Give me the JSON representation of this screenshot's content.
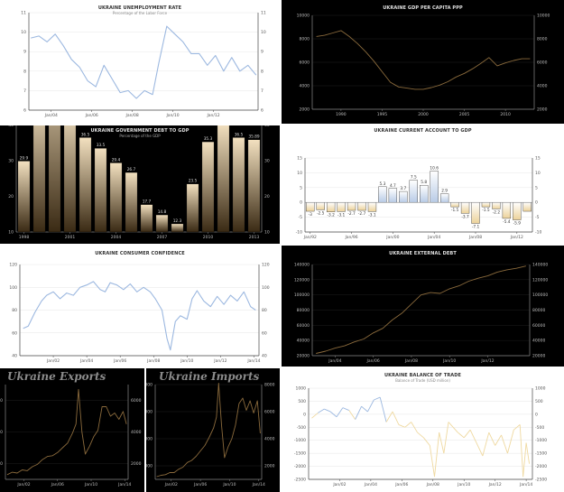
{
  "charts": [
    {
      "id": "unemployment",
      "type": "line",
      "theme": "light",
      "title": "UKRAINE UNEMPLOYMENT RATE",
      "subtitle": "Percentage of the Labor Force",
      "line_color": "#9cb8e0",
      "ylim": [
        6,
        11
      ],
      "yticks": [
        "11",
        "10",
        "9",
        "8",
        "7",
        "6"
      ],
      "yticks_right": [
        "11",
        "10",
        "9",
        "8",
        "7",
        "6"
      ],
      "xticks": [
        "Jan/04",
        "Jan/06",
        "Jan/08",
        "Jan/10",
        "Jan/12"
      ],
      "x": [
        2003.0,
        2003.4,
        2003.8,
        2004.2,
        2004.6,
        2005.0,
        2005.4,
        2005.8,
        2006.2,
        2006.6,
        2007.0,
        2007.4,
        2007.8,
        2008.2,
        2008.6,
        2009.0,
        2009.3,
        2009.7,
        2010.1,
        2010.5,
        2010.9,
        2011.3,
        2011.7,
        2012.1,
        2012.5,
        2012.9,
        2013.3,
        2013.7,
        2014.1
      ],
      "y": [
        9.7,
        9.8,
        9.5,
        9.9,
        9.3,
        8.6,
        8.2,
        7.5,
        7.2,
        8.3,
        7.6,
        6.9,
        7.0,
        6.6,
        7.0,
        6.8,
        8.4,
        10.3,
        9.9,
        9.5,
        8.9,
        8.9,
        8.3,
        8.8,
        8.0,
        8.7,
        8.0,
        8.3,
        7.8
      ]
    },
    {
      "id": "gdp_per_capita",
      "type": "line",
      "theme": "dark",
      "title": "UKRAINE GDP PER CAPITA PPP",
      "subtitle": "",
      "line_color": "#8a6a3c",
      "ylim": [
        2000,
        10000
      ],
      "yticks": [
        "10000",
        "8000",
        "6000",
        "4000",
        "2000"
      ],
      "yticks_right": [
        "10000",
        "8000",
        "6000",
        "4000",
        "2000"
      ],
      "xticks": [
        "1990",
        "1995",
        "2000",
        "2005",
        "2010"
      ],
      "x": [
        1987,
        1988,
        1989,
        1990,
        1991,
        1992,
        1993,
        1994,
        1995,
        1996,
        1997,
        1998,
        1999,
        2000,
        2001,
        2002,
        2003,
        2004,
        2005,
        2006,
        2007,
        2008,
        2009,
        2010,
        2011,
        2012,
        2013
      ],
      "y": [
        8200,
        8300,
        8500,
        8700,
        8200,
        7600,
        6900,
        6100,
        5200,
        4300,
        3900,
        3800,
        3700,
        3700,
        3850,
        4050,
        4350,
        4750,
        5050,
        5450,
        5900,
        6400,
        5700,
        5950,
        6150,
        6300,
        6300
      ]
    },
    {
      "id": "debt_to_gdp",
      "type": "bar",
      "theme": "dark",
      "title": "UKRAINE GOVERNMENT DEBT TO GDP",
      "subtitle": "Percentage of the GDP",
      "ylim": [
        10,
        70
      ],
      "yticks": [
        "70",
        "60",
        "50",
        "40",
        "30",
        "20",
        "10"
      ],
      "yticks_right": [
        "70",
        "60",
        "50",
        "40",
        "30",
        "20",
        "10"
      ],
      "xticks": [
        "1998",
        "2001",
        "2004",
        "2007",
        "2010",
        "2013"
      ],
      "categories": [
        "1998",
        "1999",
        "2000",
        "2001",
        "2002",
        "2003",
        "2004",
        "2005",
        "2006",
        "2007",
        "2008",
        "2009",
        "2010",
        "2011",
        "2012",
        "2013"
      ],
      "values": [
        29.9,
        48.1,
        61,
        45.3,
        36.5,
        33.5,
        29.4,
        26.7,
        17.7,
        14.8,
        12.3,
        23.5,
        35.3,
        40.5,
        36.5,
        35.89
      ],
      "labels": [
        "29.9",
        "48.1",
        "61",
        "45.3",
        "36.5",
        "33.5",
        "29.4",
        "26.7",
        "17.7",
        "14.8",
        "12.3",
        "23.5",
        "35.3",
        "40.5",
        "36.5",
        "35.89"
      ]
    },
    {
      "id": "current_account",
      "type": "bar",
      "theme": "light",
      "title": "UKRAINE CURRENT ACCOUNT TO GDP",
      "subtitle": "",
      "ylim": [
        -10,
        15
      ],
      "yticks": [
        "15",
        "10",
        "5",
        "0",
        "-5",
        "-10"
      ],
      "yticks_right": [
        "15",
        "10",
        "5",
        "0",
        "-5",
        "-10"
      ],
      "xticks": [
        "Jan/92",
        "Jan/96",
        "Jan/00",
        "Jan/04",
        "Jan/08",
        "Jan/12"
      ],
      "categories": [
        "1992",
        "1993",
        "1994",
        "1995",
        "1996",
        "1997",
        "1998",
        "1999",
        "2000",
        "2001",
        "2002",
        "2003",
        "2004",
        "2005",
        "2006",
        "2007",
        "2008",
        "2009",
        "2010",
        "2011",
        "2012",
        "2013"
      ],
      "values": [
        -3,
        -2.5,
        -3.2,
        -3.1,
        -2.7,
        -2.7,
        -3.1,
        5.3,
        4.7,
        3.7,
        7.5,
        5.8,
        10.6,
        2.9,
        -1.5,
        -3.7,
        -7.1,
        -1.5,
        -2.2,
        -5.4,
        -5.9,
        -3
      ],
      "labels": [
        "-3",
        "-2.5",
        "-3.2",
        "-3.1",
        "-2.7",
        "-2.7",
        "-3.1",
        "5.3",
        "4.7",
        "3.7",
        "7.5",
        "5.8",
        "10.6",
        "2.9",
        "-1.5",
        "-3.7",
        "-7.1",
        "-1.5",
        "-2.2",
        "-5.4",
        "-5.9",
        ""
      ]
    },
    {
      "id": "consumer_confidence",
      "type": "line",
      "theme": "light",
      "title": "UKRAINE CONSUMER CONFIDENCE",
      "subtitle": "",
      "line_color": "#9cb8e0",
      "ylim": [
        40,
        120
      ],
      "yticks": [
        "120",
        "100",
        "80",
        "60",
        "40"
      ],
      "yticks_right": [
        "120",
        "100",
        "80",
        "60",
        "40"
      ],
      "xticks": [
        "Jan/02",
        "Jan/04",
        "Jan/06",
        "Jan/08",
        "Jan/10",
        "Jan/12",
        "Jan/14"
      ],
      "x": [
        2000.2,
        2000.5,
        2000.9,
        2001.3,
        2001.6,
        2002.0,
        2002.4,
        2002.8,
        2003.2,
        2003.6,
        2004.0,
        2004.4,
        2004.8,
        2005.1,
        2005.4,
        2005.8,
        2006.2,
        2006.6,
        2007.0,
        2007.4,
        2007.8,
        2008.1,
        2008.5,
        2008.8,
        2009.0,
        2009.3,
        2009.6,
        2010.0,
        2010.3,
        2010.6,
        2011.0,
        2011.4,
        2011.8,
        2012.2,
        2012.6,
        2013.0,
        2013.4,
        2013.8,
        2014.1
      ],
      "y": [
        64,
        66,
        78,
        88,
        93,
        96,
        90,
        95,
        93,
        100,
        102,
        105,
        98,
        96,
        104,
        102,
        98,
        103,
        96,
        100,
        96,
        90,
        80,
        55,
        45,
        70,
        75,
        72,
        90,
        97,
        88,
        83,
        92,
        85,
        93,
        88,
        96,
        83,
        80
      ]
    },
    {
      "id": "external_debt",
      "type": "line",
      "theme": "dark",
      "title": "UKRAINE EXTERNAL DEBT",
      "subtitle": "",
      "line_color": "#8a6a3c",
      "ylim": [
        20000,
        140000
      ],
      "yticks": [
        "140000",
        "120000",
        "100000",
        "80000",
        "60000",
        "40000",
        "20000"
      ],
      "yticks_right": [
        "140000",
        "120000",
        "100000",
        "80000",
        "60000",
        "40000",
        "20000"
      ],
      "xticks": [
        "Jan/04",
        "Jan/06",
        "Jan/08",
        "Jan/10",
        "Jan/12"
      ],
      "x": [
        2003.0,
        2003.5,
        2004.0,
        2004.5,
        2005.0,
        2005.5,
        2006.0,
        2006.5,
        2007.0,
        2007.5,
        2008.0,
        2008.5,
        2009.0,
        2009.5,
        2010.0,
        2010.5,
        2011.0,
        2011.5,
        2012.0,
        2012.5,
        2013.0,
        2013.5,
        2014.0
      ],
      "y": [
        23000,
        26000,
        30000,
        33000,
        38000,
        42000,
        50000,
        56000,
        67000,
        76000,
        88000,
        100000,
        103000,
        102000,
        108000,
        112000,
        118000,
        122000,
        125000,
        130000,
        133000,
        135000,
        138000
      ]
    },
    {
      "id": "exports",
      "type": "line",
      "theme": "dark",
      "title": "Ukraine Exports",
      "subtitle": "",
      "line_color": "#8a6a3c",
      "ylim": [
        1000,
        7000
      ],
      "yticks": [
        "6000",
        "4000",
        "2000"
      ],
      "yticks_right": [
        "6000",
        "4000",
        "2000"
      ],
      "xticks": [
        "Jan/02",
        "Jan/06",
        "Jan/10",
        "Jan/14"
      ],
      "x": [
        2000,
        2000.6,
        2001.2,
        2001.8,
        2002.4,
        2003,
        2003.6,
        2004.2,
        2004.8,
        2005.4,
        2006,
        2006.6,
        2007.2,
        2007.8,
        2008.2,
        2008.5,
        2008.9,
        2009.3,
        2009.8,
        2010.3,
        2010.8,
        2011.3,
        2011.8,
        2012.3,
        2012.8,
        2013.3,
        2013.8,
        2014.2
      ],
      "y": [
        1300,
        1450,
        1400,
        1600,
        1550,
        1800,
        1950,
        2250,
        2450,
        2500,
        2700,
        3000,
        3300,
        3950,
        4500,
        6700,
        4000,
        2600,
        3100,
        3700,
        4100,
        5600,
        5600,
        5000,
        5200,
        4800,
        5300,
        4500
      ]
    },
    {
      "id": "imports",
      "type": "line",
      "theme": "dark",
      "title": "Ukraine Imports",
      "subtitle": "",
      "line_color": "#8a6a3c",
      "ylim": [
        1000,
        8000
      ],
      "yticks": [
        "8000",
        "6000",
        "4000",
        "2000"
      ],
      "yticks_right": [
        "8000",
        "6000",
        "4000",
        "2000"
      ],
      "xticks": [
        "Jan/02",
        "Jan/06",
        "Jan/10",
        "Jan/14"
      ],
      "x": [
        2000,
        2000.6,
        2001.2,
        2001.8,
        2002.4,
        2003,
        2003.6,
        2004.2,
        2004.8,
        2005.4,
        2006,
        2006.6,
        2007.2,
        2007.8,
        2008.2,
        2008.5,
        2008.9,
        2009.3,
        2009.8,
        2010.3,
        2010.8,
        2011.3,
        2011.8,
        2012.3,
        2012.8,
        2013.3,
        2013.8,
        2014.2
      ],
      "y": [
        1200,
        1300,
        1350,
        1500,
        1500,
        1750,
        1900,
        2250,
        2400,
        2700,
        3100,
        3500,
        4100,
        4800,
        5600,
        8100,
        5000,
        2600,
        3400,
        4000,
        5000,
        6600,
        7000,
        6100,
        6800,
        5900,
        6800,
        4400
      ]
    },
    {
      "id": "balance_of_trade",
      "type": "line",
      "theme": "light",
      "title": "UKRAINE BALANCE OF TRADE",
      "subtitle": "Balance of Trade (USD million)",
      "positive_color": "#9cb8e0",
      "negative_color": "#efd9a0",
      "ylim": [
        -2500,
        1000
      ],
      "yticks": [
        "1000",
        "500",
        "0",
        "-500",
        "-1000",
        "-1500",
        "-2000",
        "-2500"
      ],
      "yticks_right": [
        "1000",
        "500",
        "0",
        "-500",
        "-1000",
        "-1500",
        "-2000",
        "-2500"
      ],
      "xticks": [
        "Jan/02",
        "Jan/04",
        "Jan/06",
        "Jan/08",
        "Jan/10",
        "Jan/12",
        "Jan/14"
      ],
      "x": [
        2000.2,
        2000.6,
        2001.0,
        2001.4,
        2001.8,
        2002.2,
        2002.6,
        2003.0,
        2003.4,
        2003.8,
        2004.2,
        2004.6,
        2005.0,
        2005.4,
        2005.8,
        2006.2,
        2006.6,
        2007.0,
        2007.4,
        2007.8,
        2008.1,
        2008.4,
        2008.7,
        2009.0,
        2009.3,
        2009.6,
        2010.0,
        2010.4,
        2010.8,
        2011.2,
        2011.6,
        2012.0,
        2012.4,
        2012.8,
        2013.2,
        2013.6,
        2013.8,
        2014.0,
        2014.2
      ],
      "y": [
        -150,
        50,
        200,
        100,
        -100,
        250,
        150,
        -200,
        300,
        100,
        550,
        650,
        -300,
        100,
        -400,
        -500,
        -300,
        -700,
        -900,
        -1200,
        -2400,
        -700,
        -1500,
        -300,
        -500,
        -700,
        -900,
        -600,
        -1100,
        -1600,
        -700,
        -1200,
        -800,
        -1500,
        -600,
        -400,
        -2400,
        -1100,
        -1900
      ]
    }
  ]
}
